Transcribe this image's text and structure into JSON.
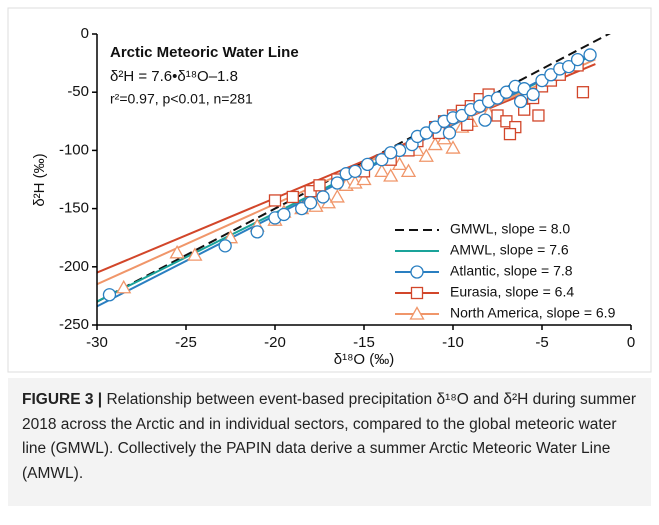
{
  "chart_data": {
    "type": "scatter",
    "title": "Arctic Meteoric Water Line",
    "annotations": [
      "δ²H = 7.6•δ¹⁸O–1.8",
      "r²=0.97, p<0.01, n=281"
    ],
    "xlabel": "δ¹⁸O (‰)",
    "ylabel": "δ²H (‰)",
    "xlim": [
      -30,
      0
    ],
    "ylim": [
      -250,
      0
    ],
    "xticks": [
      -30,
      -25,
      -20,
      -15,
      -10,
      -5,
      0
    ],
    "yticks": [
      -250,
      -200,
      -150,
      -100,
      -50,
      0
    ],
    "legend": "lower right",
    "series": [
      {
        "name": "GMWL, slope = 8.0",
        "color": "#111111",
        "dash": true,
        "fit_x": [
          -30,
          0
        ],
        "fit_values": [
          -230,
          10
        ]
      },
      {
        "name": "AMWL, slope = 7.6",
        "color": "#1aa39a",
        "fit_x": [
          -30,
          -2
        ],
        "fit_values": [
          -229.8,
          -17
        ]
      },
      {
        "name": "Atlantic, slope = 7.8",
        "color": "#2a7fc1",
        "marker": "circle",
        "fit_x": [
          -30,
          -2
        ],
        "fit_values": [
          -234,
          -15.6
        ],
        "x": [
          -29.3,
          -22.8,
          -21,
          -20,
          -19.5,
          -18.5,
          -18,
          -17.3,
          -16.5,
          -16,
          -15.5,
          -14.8,
          -14,
          -13,
          -12.3,
          -12,
          -11.5,
          -11,
          -10.5,
          -10,
          -9.5,
          -9,
          -8.5,
          -8,
          -7.5,
          -7,
          -6.5,
          -6,
          -5.5,
          -5,
          -4.5,
          -4,
          -3.5,
          -3,
          -2.3,
          -6.2,
          -8.2,
          -10.2,
          -13.5
        ],
        "values": [
          -224,
          -182,
          -170,
          -158,
          -155,
          -150,
          -145,
          -140,
          -128,
          -120,
          -118,
          -112,
          -108,
          -100,
          -95,
          -88,
          -85,
          -80,
          -75,
          -72,
          -70,
          -65,
          -62,
          -58,
          -55,
          -50,
          -45,
          -47,
          -52,
          -40,
          -35,
          -30,
          -28,
          -22,
          -18,
          -58,
          -74,
          -85,
          -102
        ]
      },
      {
        "name": "Eurasia, slope = 6.4",
        "color": "#d2462a",
        "marker": "square",
        "fit_x": [
          -30,
          -2
        ],
        "fit_values": [
          -205,
          -25.8
        ],
        "x": [
          -20,
          -19,
          -18,
          -17.5,
          -16.5,
          -15,
          -13.5,
          -12.5,
          -12,
          -11,
          -10.5,
          -10,
          -9.5,
          -9,
          -8.5,
          -8,
          -7.5,
          -7,
          -6.5,
          -6,
          -5.5,
          -5,
          -4.5,
          -4,
          -3,
          -2.7,
          -10.8,
          -9.2,
          -6.8,
          -5.2
        ],
        "values": [
          -143,
          -140,
          -135,
          -130,
          -125,
          -118,
          -108,
          -100,
          -92,
          -80,
          -75,
          -70,
          -66,
          -62,
          -56,
          -52,
          -70,
          -75,
          -80,
          -65,
          -55,
          -45,
          -40,
          -35,
          -27,
          -50,
          -85,
          -78,
          -86,
          -70
        ]
      },
      {
        "name": "North America, slope = 6.9",
        "color": "#f0966a",
        "marker": "triangle",
        "fit_x": [
          -30,
          -2
        ],
        "fit_values": [
          -215,
          -21.8
        ],
        "x": [
          -28.5,
          -25.5,
          -24.5,
          -22.5,
          -21,
          -20,
          -19.5,
          -18.5,
          -18,
          -17.5,
          -17,
          -16.5,
          -16,
          -15.5,
          -15,
          -14,
          -13.5,
          -13,
          -12.5,
          -12,
          -11.5,
          -11,
          -10.5,
          -10,
          -9.5,
          -9,
          -8,
          -17.7
        ],
        "values": [
          -218,
          -188,
          -190,
          -175,
          -165,
          -160,
          -153,
          -150,
          -140,
          -135,
          -145,
          -140,
          -130,
          -128,
          -125,
          -118,
          -122,
          -112,
          -118,
          -100,
          -105,
          -95,
          -90,
          -98,
          -80,
          -75,
          -68,
          -148
        ]
      }
    ]
  },
  "caption": {
    "label": "FIGURE 3 |",
    "text": "Relationship between event-based precipitation δ¹⁸O and δ²H during summer 2018 across the Arctic and in individual sectors, compared to the global meteoric water line (GMWL). Collectively the PAPIN data derive a summer Arctic Meteoric Water Line (AMWL)."
  }
}
